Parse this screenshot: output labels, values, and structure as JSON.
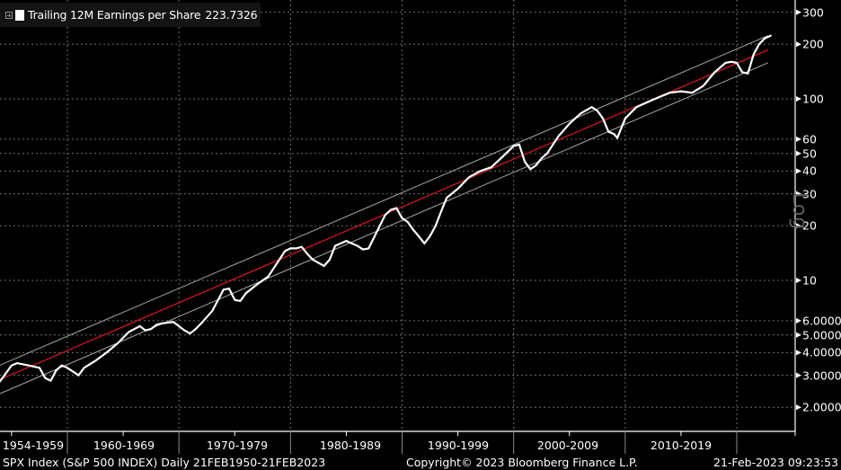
{
  "legend": {
    "label": "Trailing 12M Earnings per Share",
    "last_value": "223.7326",
    "color": "#ffffff"
  },
  "yaxis": {
    "scale_label": "Log",
    "ticks": [
      {
        "value": 300,
        "label": "300"
      },
      {
        "value": 200,
        "label": "200"
      },
      {
        "value": 100,
        "label": "100"
      },
      {
        "value": 60,
        "label": "60"
      },
      {
        "value": 50,
        "label": "50"
      },
      {
        "value": 40,
        "label": "40"
      },
      {
        "value": 30,
        "label": "30"
      },
      {
        "value": 20,
        "label": "20"
      },
      {
        "value": 10,
        "label": "10"
      },
      {
        "value": 6,
        "label": "6.0000"
      },
      {
        "value": 5,
        "label": "5.0000"
      },
      {
        "value": 4,
        "label": "4.0000"
      },
      {
        "value": 3,
        "label": "3.0000"
      },
      {
        "value": 2,
        "label": "2.0000"
      }
    ]
  },
  "xaxis": {
    "bands": [
      "1954-1959",
      "1960-1969",
      "1970-1979",
      "1980-1989",
      "1990-1999",
      "2000-2009",
      "2010-2019"
    ]
  },
  "footer": {
    "security": "SPX Index (S&P 500 INDEX)  Daily 21FEB1950-21FEB2023",
    "copyright": "Copyright© 2023 Bloomberg Finance L.P.",
    "timestamp": "21-Feb-2023 09:23:53"
  },
  "colors": {
    "background": "#000000",
    "series": "#ffffff",
    "trend": "#c0161c",
    "channel": "#9a9a9a",
    "grid": "#6e6e6e"
  },
  "chart_data": {
    "type": "line",
    "title": "Trailing 12M Earnings per Share",
    "subtitle": "SPX Index (S&P 500 INDEX) Daily 21FEB1950-21FEB2023",
    "xlabel": "",
    "ylabel": "",
    "yscale": "log",
    "ylim": [
      1.8,
      330
    ],
    "grid": true,
    "legend_position": "top-left",
    "x_tick_labels": [
      "1954-1959",
      "1960-1969",
      "1970-1979",
      "1980-1989",
      "1990-1999",
      "2000-2009",
      "2010-2019"
    ],
    "y_tick_labels": [
      "300",
      "200",
      "100",
      "60",
      "50",
      "40",
      "30",
      "20",
      "10",
      "6.0000",
      "5.0000",
      "4.0000",
      "3.0000",
      "2.0000"
    ],
    "series": [
      {
        "name": "Trailing 12M Earnings per Share",
        "last_value": 223.7326,
        "x": [
          1952.0,
          1952.5,
          1953.0,
          1953.5,
          1954.0,
          1955.0,
          1955.5,
          1956.5,
          1957.5,
          1958.0,
          1958.5,
          1959.0,
          1959.5,
          1960.0,
          1961.0,
          1961.5,
          1962.5,
          1963.5,
          1964.5,
          1965.5,
          1966.5,
          1967.0,
          1967.5,
          1968.0,
          1968.5,
          1969.5,
          1970.5,
          1971.0,
          1971.5,
          1972.0,
          1973.0,
          1974.0,
          1974.5,
          1975.0,
          1975.5,
          1976.0,
          1977.0,
          1978.0,
          1979.0,
          1979.5,
          1980.0,
          1980.5,
          1981.0,
          1981.5,
          1982.0,
          1982.5,
          1983.0,
          1983.5,
          1984.0,
          1985.0,
          1986.0,
          1986.5,
          1987.0,
          1988.0,
          1988.5,
          1989.0,
          1989.5,
          1990.0,
          1990.5,
          1991.0,
          1991.5,
          1992.0,
          1992.5,
          1993.0,
          1993.5,
          1994.0,
          1995.0,
          1996.0,
          1997.0,
          1998.0,
          1999.0,
          2000.0,
          2000.5,
          2001.0,
          2001.5,
          2002.0,
          2002.5,
          2003.0,
          2004.0,
          2005.0,
          2006.0,
          2007.0,
          2007.5,
          2008.0,
          2008.5,
          2009.0,
          2009.3,
          2010.0,
          2011.0,
          2012.0,
          2013.0,
          2014.0,
          2015.0,
          2016.0,
          2017.0,
          2018.0,
          2019.0,
          2019.5,
          2020.0,
          2020.5,
          2021.0,
          2021.5,
          2022.0,
          2022.5,
          2023.1
        ],
        "values": [
          2.5,
          2.6,
          2.7,
          2.6,
          2.8,
          3.4,
          3.5,
          3.4,
          3.3,
          2.9,
          2.8,
          3.2,
          3.4,
          3.3,
          3.0,
          3.3,
          3.6,
          4.0,
          4.5,
          5.2,
          5.6,
          5.3,
          5.4,
          5.7,
          5.8,
          5.9,
          5.3,
          5.1,
          5.4,
          5.8,
          6.8,
          8.9,
          9.0,
          7.8,
          7.7,
          8.5,
          9.5,
          10.5,
          13.0,
          14.5,
          15.0,
          15.0,
          15.3,
          14.0,
          13.0,
          12.5,
          12.0,
          13.0,
          15.5,
          16.5,
          15.5,
          14.8,
          15.0,
          20.0,
          23.0,
          24.5,
          25.0,
          22.0,
          21.0,
          19.0,
          17.5,
          16.0,
          17.5,
          20.0,
          24.0,
          28.5,
          32.0,
          37.0,
          40.0,
          42.0,
          48.0,
          55.0,
          56.0,
          45.0,
          41.0,
          43.0,
          47.0,
          50.0,
          62.0,
          73.0,
          83.0,
          90.0,
          86.0,
          78.0,
          66.0,
          64.0,
          61.0,
          78.0,
          90.0,
          96.0,
          102.0,
          108.0,
          110.0,
          108.0,
          118.0,
          140.0,
          158.0,
          160.0,
          158.0,
          140.0,
          138.0,
          175.0,
          200.0,
          215.0,
          223.7326
        ]
      },
      {
        "name": "Log-linear trend",
        "color": "#c0161c",
        "x": [
          1950.1,
          2022.8
        ],
        "values": [
          2.25,
          186.0
        ]
      },
      {
        "name": "Upper channel",
        "color": "#9a9a9a",
        "x": [
          1950.1,
          2022.8
        ],
        "values": [
          2.7,
          223.0
        ]
      },
      {
        "name": "Lower channel",
        "color": "#9a9a9a",
        "x": [
          1950.1,
          2022.8
        ],
        "values": [
          1.88,
          158.0
        ]
      }
    ]
  }
}
